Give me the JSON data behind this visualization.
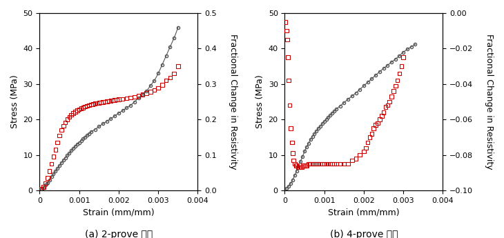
{
  "fig_width": 7.3,
  "fig_height": 3.45,
  "dpi": 100,
  "bg_color": "#f0f0f0",
  "panel_a": {
    "title": "",
    "xlabel": "Strain (mm/mm)",
    "ylabel_left": "Stress (MPa)",
    "ylabel_right": "Fractional Change in Resistivity",
    "xlim": [
      0,
      0.004
    ],
    "ylim_left": [
      0,
      50
    ],
    "ylim_right": [
      0,
      0.5
    ],
    "xticks": [
      0,
      0.001,
      0.002,
      0.003,
      0.004
    ],
    "yticks_left": [
      0,
      10,
      20,
      30,
      40,
      50
    ],
    "yticks_right": [
      0,
      0.1,
      0.2,
      0.3,
      0.4,
      0.5
    ],
    "stress_strain": {
      "color": "#555555",
      "marker": "o",
      "markersize": 3,
      "x": [
        5e-05,
        0.0001,
        0.00015,
        0.0002,
        0.00025,
        0.0003,
        0.00035,
        0.0004,
        0.00045,
        0.0005,
        0.00055,
        0.0006,
        0.00065,
        0.0007,
        0.00075,
        0.0008,
        0.00085,
        0.0009,
        0.00095,
        0.001,
        0.00105,
        0.0011,
        0.00115,
        0.0012,
        0.00125,
        0.0013,
        0.0014,
        0.0015,
        0.0016,
        0.0017,
        0.0018,
        0.0019,
        0.002,
        0.0021,
        0.0022,
        0.0023,
        0.0024,
        0.0025,
        0.0026,
        0.0027,
        0.0028,
        0.0029,
        0.003,
        0.0031,
        0.0032,
        0.0033,
        0.0034,
        0.0035
      ],
      "y": [
        0.3,
        0.8,
        1.5,
        2.2,
        3.0,
        3.8,
        4.6,
        5.4,
        6.2,
        7.0,
        7.8,
        8.5,
        9.2,
        9.9,
        10.5,
        11.2,
        11.8,
        12.4,
        13.0,
        13.5,
        14.0,
        14.5,
        15.0,
        15.5,
        16.0,
        16.5,
        17.2,
        18.0,
        18.8,
        19.5,
        20.2,
        21.0,
        21.8,
        22.5,
        23.3,
        24.0,
        25.0,
        26.0,
        27.0,
        28.0,
        29.5,
        31.0,
        33.0,
        35.5,
        38.0,
        40.5,
        43.0,
        46.0
      ]
    },
    "resistivity": {
      "color": "#cc0000",
      "marker": "s",
      "markersize": 4,
      "x": [
        5e-05,
        0.0001,
        0.00015,
        0.0002,
        0.00025,
        0.0003,
        0.00035,
        0.0004,
        0.00045,
        0.0005,
        0.00055,
        0.0006,
        0.00065,
        0.0007,
        0.00075,
        0.0008,
        0.00085,
        0.0009,
        0.00095,
        0.001,
        0.00105,
        0.0011,
        0.00115,
        0.0012,
        0.00125,
        0.0013,
        0.00135,
        0.0014,
        0.00145,
        0.0015,
        0.00155,
        0.0016,
        0.00165,
        0.0017,
        0.00175,
        0.0018,
        0.00185,
        0.0019,
        0.00195,
        0.002,
        0.0021,
        0.0022,
        0.0023,
        0.0024,
        0.0025,
        0.0026,
        0.0027,
        0.0028,
        0.0029,
        0.003,
        0.0031,
        0.0032,
        0.0033,
        0.0034,
        0.0035
      ],
      "y": [
        0.005,
        0.01,
        0.02,
        0.035,
        0.055,
        0.075,
        0.095,
        0.115,
        0.135,
        0.155,
        0.17,
        0.182,
        0.192,
        0.2,
        0.207,
        0.213,
        0.218,
        0.222,
        0.226,
        0.229,
        0.232,
        0.234,
        0.236,
        0.238,
        0.24,
        0.242,
        0.243,
        0.245,
        0.246,
        0.247,
        0.248,
        0.249,
        0.25,
        0.251,
        0.252,
        0.253,
        0.254,
        0.255,
        0.256,
        0.257,
        0.258,
        0.26,
        0.262,
        0.264,
        0.267,
        0.27,
        0.274,
        0.278,
        0.283,
        0.289,
        0.298,
        0.31,
        0.318,
        0.33,
        0.35
      ]
    }
  },
  "panel_b": {
    "title": "",
    "xlabel": "Strain (mm/mm)",
    "ylabel_left": "Stress (MPa)",
    "ylabel_right": "Fractional Change in Resistivity",
    "xlim": [
      0,
      0.004
    ],
    "ylim_left": [
      0,
      50
    ],
    "ylim_right": [
      -0.1,
      0
    ],
    "xticks": [
      0,
      0.001,
      0.002,
      0.003,
      0.004
    ],
    "yticks_left": [
      0,
      10,
      20,
      30,
      40,
      50
    ],
    "yticks_right": [
      0,
      -0.02,
      -0.04,
      -0.06,
      -0.08,
      -0.1
    ],
    "stress_strain": {
      "color": "#555555",
      "marker": "o",
      "markersize": 3,
      "x": [
        5e-05,
        0.0001,
        0.00015,
        0.0002,
        0.00025,
        0.0003,
        0.00035,
        0.0004,
        0.00045,
        0.0005,
        0.00055,
        0.0006,
        0.00065,
        0.0007,
        0.00075,
        0.0008,
        0.00085,
        0.0009,
        0.00095,
        0.001,
        0.00105,
        0.0011,
        0.00115,
        0.0012,
        0.00125,
        0.0013,
        0.0014,
        0.0015,
        0.0016,
        0.0017,
        0.0018,
        0.0019,
        0.002,
        0.0021,
        0.0022,
        0.0023,
        0.0024,
        0.0025,
        0.0026,
        0.0027,
        0.0028,
        0.0029,
        0.003,
        0.0031,
        0.0032,
        0.0033
      ],
      "y": [
        0.5,
        1.2,
        2.0,
        3.0,
        4.2,
        5.5,
        6.8,
        8.2,
        9.6,
        11.0,
        12.2,
        13.3,
        14.3,
        15.2,
        16.0,
        16.8,
        17.5,
        18.1,
        18.8,
        19.4,
        20.0,
        20.6,
        21.2,
        21.8,
        22.3,
        22.9,
        23.8,
        24.8,
        25.7,
        26.6,
        27.5,
        28.5,
        29.5,
        30.5,
        31.5,
        32.5,
        33.5,
        34.4,
        35.3,
        36.2,
        37.0,
        38.0,
        39.0,
        39.8,
        40.5,
        41.2
      ]
    },
    "resistivity": {
      "color": "#cc0000",
      "marker": "s",
      "markersize": 4,
      "x": [
        2e-05,
        4e-05,
        6e-05,
        8e-05,
        0.0001,
        0.00012,
        0.00015,
        0.00018,
        0.0002,
        0.00022,
        0.00025,
        0.00028,
        0.0003,
        0.00033,
        0.00036,
        0.0004,
        0.00043,
        0.00046,
        0.0005,
        0.00053,
        0.00056,
        0.0006,
        0.00063,
        0.00066,
        0.0007,
        0.00073,
        0.00076,
        0.0008,
        0.00083,
        0.00086,
        0.0009,
        0.00095,
        0.001,
        0.00105,
        0.0011,
        0.00115,
        0.0012,
        0.00125,
        0.0013,
        0.0014,
        0.0015,
        0.0016,
        0.0017,
        0.0018,
        0.0019,
        0.002,
        0.00205,
        0.0021,
        0.00215,
        0.0022,
        0.00225,
        0.0023,
        0.00235,
        0.0024,
        0.00245,
        0.0025,
        0.00255,
        0.0026,
        0.00265,
        0.0027,
        0.00275,
        0.0028,
        0.00285,
        0.0029,
        0.00295,
        0.003
      ],
      "y": [
        -0.005,
        -0.01,
        -0.015,
        -0.025,
        -0.038,
        -0.052,
        -0.065,
        -0.073,
        -0.079,
        -0.083,
        -0.085,
        -0.086,
        -0.086,
        -0.087,
        -0.087,
        -0.087,
        -0.087,
        -0.086,
        -0.086,
        -0.086,
        -0.086,
        -0.085,
        -0.085,
        -0.085,
        -0.085,
        -0.085,
        -0.085,
        -0.085,
        -0.085,
        -0.085,
        -0.085,
        -0.085,
        -0.085,
        -0.085,
        -0.085,
        -0.085,
        -0.085,
        -0.085,
        -0.085,
        -0.085,
        -0.085,
        -0.085,
        -0.083,
        -0.082,
        -0.08,
        -0.078,
        -0.076,
        -0.073,
        -0.07,
        -0.068,
        -0.065,
        -0.063,
        -0.062,
        -0.06,
        -0.058,
        -0.056,
        -0.053,
        -0.052,
        -0.05,
        -0.047,
        -0.044,
        -0.041,
        -0.038,
        -0.034,
        -0.03,
        -0.025
      ]
    }
  },
  "caption_a": "(a) 2-prove 방법",
  "caption_b": "(b) 4-prove 방법",
  "caption_fontsize": 10
}
